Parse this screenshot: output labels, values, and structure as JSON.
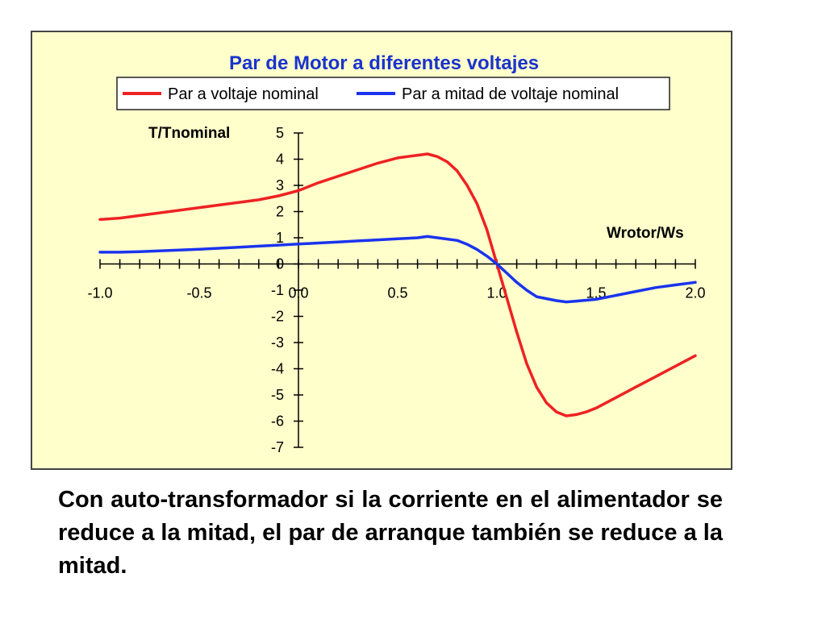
{
  "caption": "Con auto-transformador si la corriente en el alimentador se reduce a la mitad, el par de arranque también se reduce a la mitad.",
  "chart_data": {
    "type": "line",
    "title": "Par de Motor a diferentes voltajes",
    "xlabel": "Wrotor/Ws",
    "ylabel": "T/Tnominal",
    "xlim": [
      -1.0,
      2.0
    ],
    "ylim": [
      -7,
      5
    ],
    "x_ticks": [
      "-1.0",
      "-0.5",
      "0.0",
      "0.5",
      "1.0",
      "1.5",
      "2.0"
    ],
    "y_ticks": [
      "5",
      "4",
      "3",
      "2",
      "1",
      "0",
      "-1",
      "-2",
      "-3",
      "-4",
      "-5",
      "-6",
      "-7"
    ],
    "grid": false,
    "legend_position": "top",
    "colors": {
      "background": "#ffffcc",
      "title": "#1a33cc"
    },
    "series": [
      {
        "name": "Par a voltaje nominal",
        "color": "#ee2222",
        "x": [
          -1.0,
          -0.9,
          -0.8,
          -0.7,
          -0.6,
          -0.5,
          -0.4,
          -0.3,
          -0.2,
          -0.1,
          0.0,
          0.1,
          0.2,
          0.3,
          0.4,
          0.5,
          0.6,
          0.65,
          0.7,
          0.75,
          0.8,
          0.85,
          0.9,
          0.95,
          1.0,
          1.05,
          1.1,
          1.15,
          1.2,
          1.25,
          1.3,
          1.35,
          1.4,
          1.45,
          1.5,
          1.6,
          1.7,
          1.8,
          1.9,
          2.0
        ],
        "y": [
          1.7,
          1.75,
          1.85,
          1.95,
          2.05,
          2.15,
          2.25,
          2.35,
          2.45,
          2.6,
          2.8,
          3.1,
          3.35,
          3.6,
          3.85,
          4.05,
          4.15,
          4.2,
          4.1,
          3.9,
          3.55,
          3.0,
          2.3,
          1.3,
          0.0,
          -1.3,
          -2.6,
          -3.8,
          -4.7,
          -5.3,
          -5.65,
          -5.8,
          -5.75,
          -5.65,
          -5.5,
          -5.1,
          -4.7,
          -4.3,
          -3.9,
          -3.5
        ]
      },
      {
        "name": "Par a mitad de voltaje nominal",
        "color": "#1a33ee",
        "x": [
          -1.0,
          -0.9,
          -0.8,
          -0.7,
          -0.6,
          -0.5,
          -0.4,
          -0.3,
          -0.2,
          -0.1,
          0.0,
          0.1,
          0.2,
          0.3,
          0.4,
          0.5,
          0.6,
          0.65,
          0.7,
          0.8,
          0.85,
          0.9,
          0.95,
          1.0,
          1.05,
          1.1,
          1.15,
          1.2,
          1.3,
          1.35,
          1.4,
          1.5,
          1.6,
          1.7,
          1.8,
          1.9,
          2.0
        ],
        "y": [
          0.45,
          0.45,
          0.47,
          0.5,
          0.53,
          0.56,
          0.6,
          0.64,
          0.68,
          0.72,
          0.76,
          0.8,
          0.84,
          0.88,
          0.92,
          0.96,
          1.0,
          1.05,
          1.0,
          0.9,
          0.75,
          0.55,
          0.3,
          0.0,
          -0.35,
          -0.7,
          -1.0,
          -1.25,
          -1.4,
          -1.45,
          -1.42,
          -1.35,
          -1.2,
          -1.05,
          -0.9,
          -0.8,
          -0.7
        ]
      }
    ]
  }
}
